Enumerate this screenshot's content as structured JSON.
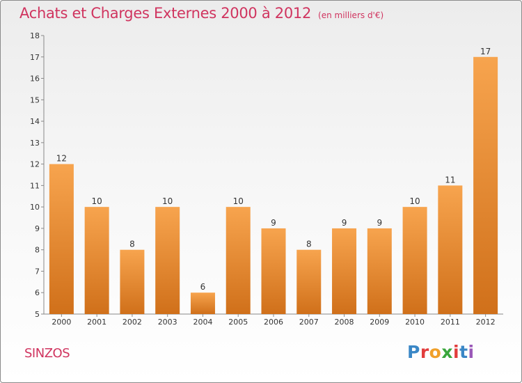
{
  "header": {
    "title": "Achats et Charges Externes 2000 à 2012",
    "unit": "(en milliers d'€)"
  },
  "footer": {
    "commune": "SINZOS",
    "logo_letters": [
      "P",
      "r",
      "o",
      "x",
      "i",
      "t",
      "i"
    ]
  },
  "colors": {
    "title": "#d0345f",
    "bar_top": "#f7a44e",
    "bar_bottom": "#d0701a",
    "logo": [
      "#3a87c6",
      "#e23d3d",
      "#f0a02a",
      "#3aa63c",
      "#e23d3d",
      "#3a87c6",
      "#9a58b8"
    ]
  },
  "chart_data": {
    "type": "bar",
    "title": "Achats et Charges Externes 2000 à 2012",
    "subtitle": "(en milliers d'€)",
    "categories": [
      "2000",
      "2001",
      "2002",
      "2003",
      "2004",
      "2005",
      "2006",
      "2007",
      "2008",
      "2009",
      "2010",
      "2011",
      "2012"
    ],
    "values": [
      12,
      10,
      8,
      10,
      6,
      10,
      9,
      8,
      9,
      9,
      10,
      11,
      17
    ],
    "ylim": [
      5,
      18
    ],
    "yticks": [
      5,
      6,
      7,
      8,
      9,
      10,
      11,
      12,
      13,
      14,
      15,
      16,
      17,
      18
    ],
    "grid": false,
    "xlabel": "",
    "ylabel": ""
  }
}
